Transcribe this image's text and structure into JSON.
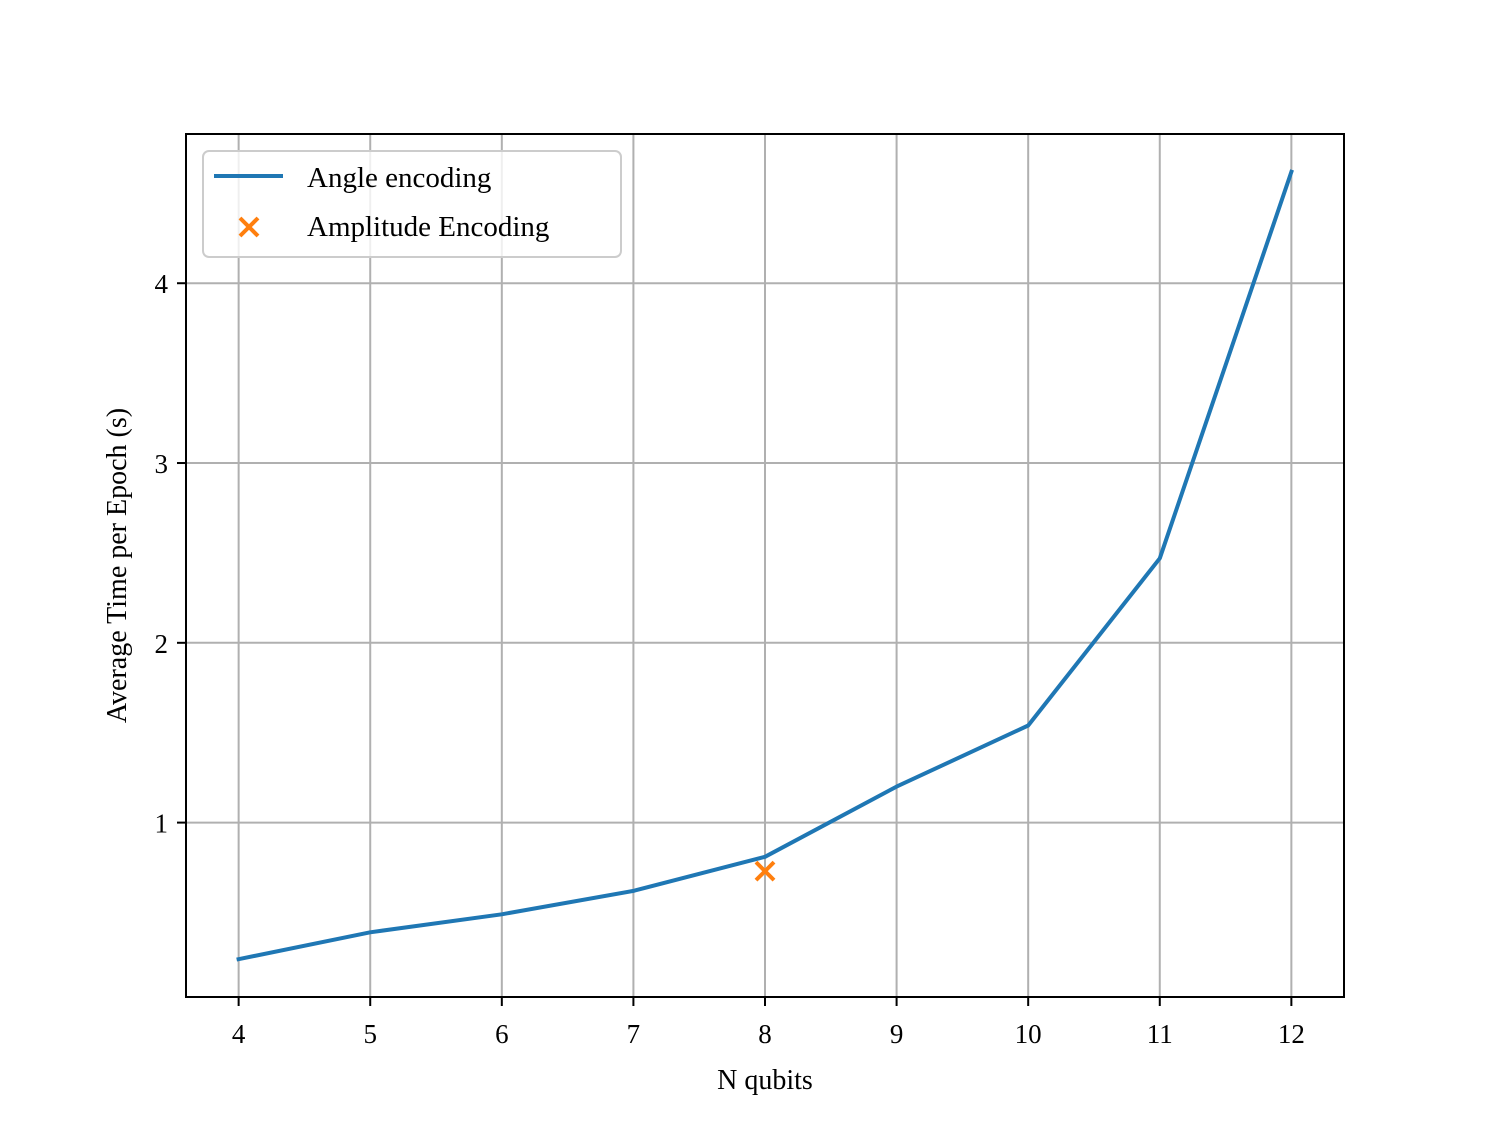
{
  "chart_data": {
    "type": "line",
    "xlabel": "N qubits",
    "ylabel": "Average Time per Epoch (s)",
    "xlim": [
      3.6,
      12.4
    ],
    "ylim": [
      0.03,
      4.83
    ],
    "x_ticks": [
      4,
      5,
      6,
      7,
      8,
      9,
      10,
      11,
      12
    ],
    "y_ticks": [
      1,
      2,
      3,
      4
    ],
    "grid": true,
    "legend_position": "top-left",
    "series": [
      {
        "name": "Angle encoding",
        "kind": "line",
        "color": "#1f77b4",
        "x": [
          4,
          5,
          6,
          7,
          8,
          9,
          10,
          11,
          12
        ],
        "y": [
          0.24,
          0.39,
          0.49,
          0.62,
          0.81,
          1.2,
          1.54,
          2.47,
          4.62
        ]
      },
      {
        "name": "Amplitude Encoding",
        "kind": "marker",
        "marker": "x",
        "color": "#ff7f0e",
        "x": [
          8
        ],
        "y": [
          0.73
        ]
      }
    ]
  }
}
